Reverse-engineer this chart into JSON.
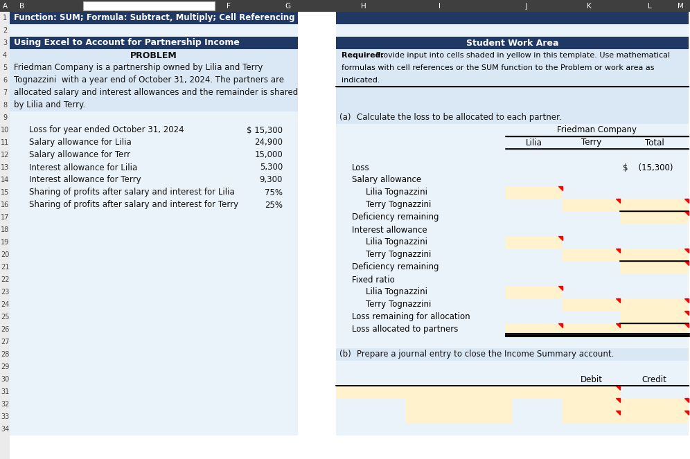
{
  "title_row1": "Function: SUM; Formula: Subtract, Multiply; Cell Referencing",
  "title_row3": "Using Excel to Account for Partnership Income",
  "problem_header": "PROBLEM",
  "student_work_header": "Student Work Area",
  "required_bold": "Required:",
  "required_rest_line1": " Provide input into cells shaded in yellow in this template. Use mathematical",
  "required_line2": "formulas with cell references or the SUM function to the Problem or work area as",
  "required_line3": "indicated.",
  "problem_lines": [
    "Friedman Company is a partnership owned by Lilia and Terry",
    "Tognazzini  with a year end of October 31, 2024. The partners are",
    "allocated salary and interest allowances and the remainder is shared",
    "by Lilia and Terry."
  ],
  "data_rows": [
    {
      "label": "Loss for year ended October 31, 2024",
      "value": "$ 15,300"
    },
    {
      "label": "Salary allowance for Lilia",
      "value": "24,900"
    },
    {
      "label": "Salary allowance for Terr",
      "value": "15,000"
    },
    {
      "label": "Interest allowance for Lilia",
      "value": "5,300"
    },
    {
      "label": "Interest allowance for Terry",
      "value": "9,300"
    },
    {
      "label": "Sharing of profits after salary and interest for Lilia",
      "value": "75%"
    },
    {
      "label": "Sharing of profits after salary and interest for Terry",
      "value": "25%"
    }
  ],
  "part_a_label": "(a)",
  "part_a_text": "Calculate the loss to be allocated to each partner.",
  "company_name": "Friedman Company",
  "col_headers": [
    "Lilia",
    "Terry",
    "Total"
  ],
  "table_rows": [
    {
      "label": "Loss",
      "indent": 0,
      "ly": false,
      "ty": false,
      "oy": false,
      "total_val": "$    (15,300)",
      "top_border": false,
      "double_bottom": false
    },
    {
      "label": "Salary allowance",
      "indent": 0,
      "ly": false,
      "ty": false,
      "oy": false,
      "total_val": "",
      "top_border": false,
      "double_bottom": false
    },
    {
      "label": "Lilia Tognazzini",
      "indent": 1,
      "ly": true,
      "ty": false,
      "oy": false,
      "total_val": "",
      "top_border": false,
      "double_bottom": false
    },
    {
      "label": "Terry Tognazzini",
      "indent": 1,
      "ly": false,
      "ty": true,
      "oy": true,
      "total_val": "",
      "top_border": false,
      "double_bottom": false
    },
    {
      "label": "Deficiency remaining",
      "indent": 0,
      "ly": false,
      "ty": false,
      "oy": true,
      "total_val": "",
      "top_border": true,
      "double_bottom": false
    },
    {
      "label": "Interest allowance",
      "indent": 0,
      "ly": false,
      "ty": false,
      "oy": false,
      "total_val": "",
      "top_border": false,
      "double_bottom": false
    },
    {
      "label": "Lilia Tognazzini",
      "indent": 1,
      "ly": true,
      "ty": false,
      "oy": false,
      "total_val": "",
      "top_border": false,
      "double_bottom": false
    },
    {
      "label": "Terry Tognazzini",
      "indent": 1,
      "ly": false,
      "ty": true,
      "oy": true,
      "total_val": "",
      "top_border": false,
      "double_bottom": false
    },
    {
      "label": "Deficiency remaining",
      "indent": 0,
      "ly": false,
      "ty": false,
      "oy": true,
      "total_val": "",
      "top_border": true,
      "double_bottom": false
    },
    {
      "label": "Fixed ratio",
      "indent": 0,
      "ly": false,
      "ty": false,
      "oy": false,
      "total_val": "",
      "top_border": false,
      "double_bottom": false
    },
    {
      "label": "Lilia Tognazzini",
      "indent": 1,
      "ly": true,
      "ty": false,
      "oy": false,
      "total_val": "",
      "top_border": false,
      "double_bottom": false
    },
    {
      "label": "Terry Tognazzini",
      "indent": 1,
      "ly": false,
      "ty": true,
      "oy": true,
      "total_val": "",
      "top_border": false,
      "double_bottom": false
    },
    {
      "label": "Loss remaining for allocation",
      "indent": 0,
      "ly": false,
      "ty": false,
      "oy": true,
      "total_val": "",
      "top_border": false,
      "double_bottom": false
    },
    {
      "label": "Loss allocated to partners",
      "indent": 0,
      "ly": true,
      "ty": true,
      "oy": true,
      "total_val": "",
      "top_border": true,
      "double_bottom": true
    }
  ],
  "part_b_label": "(b)",
  "part_b_text": "Prepare a journal entry to close the Income Summary account.",
  "colors": {
    "dark_blue": "#1F3864",
    "light_blue": "#DAE8F5",
    "very_light_blue": "#EBF3FA",
    "white": "#FFFFFF",
    "yellow": "#FFF2CC",
    "grid": "#C8C8C8",
    "black": "#000000",
    "header_dark": "#3F3F3F"
  }
}
